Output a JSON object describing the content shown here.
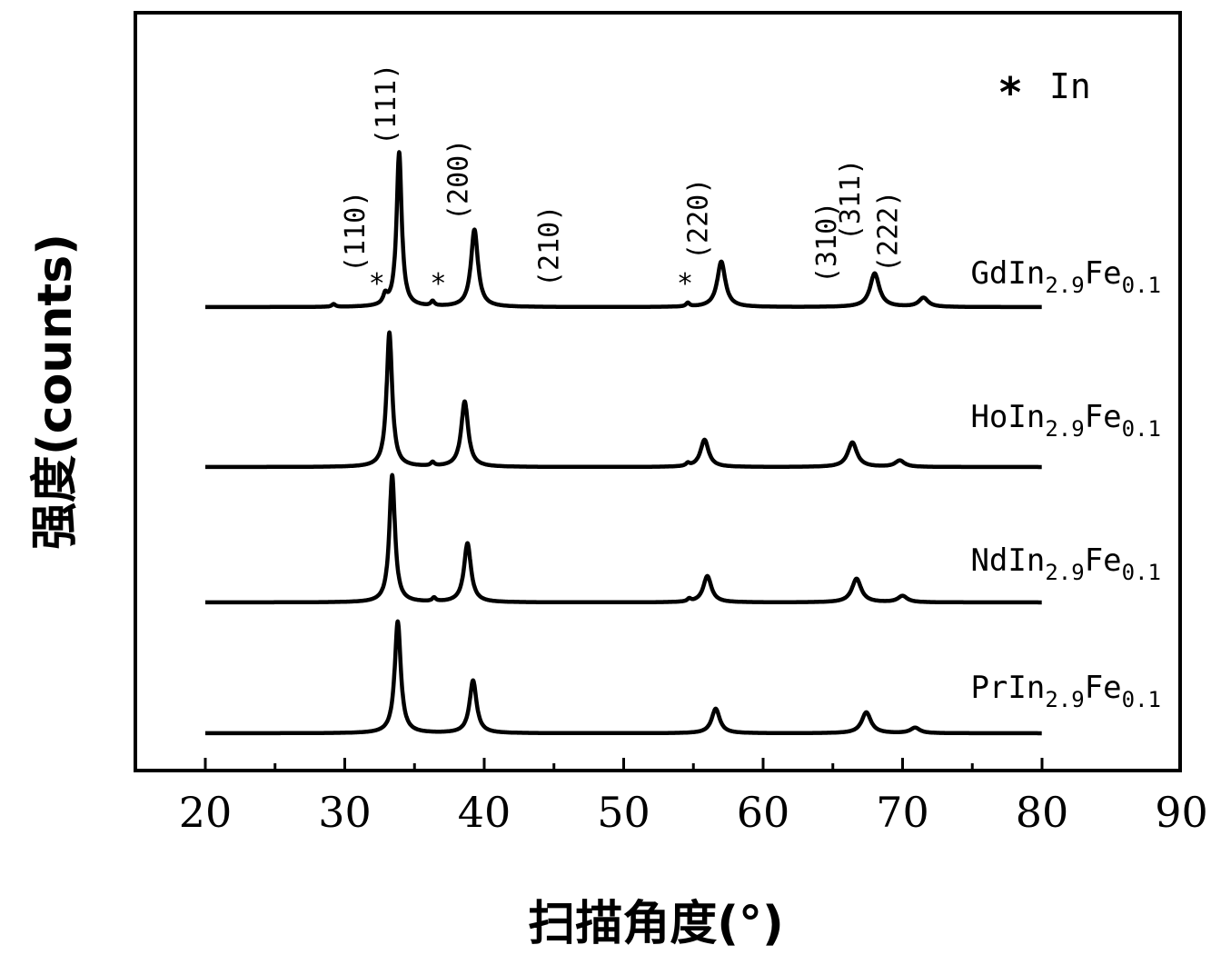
{
  "chart_data": {
    "type": "line",
    "title": "",
    "xlabel": "扫描角度(°)",
    "ylabel": "强度(counts)",
    "xlim": [
      15,
      90
    ],
    "xticks": [
      20,
      30,
      40,
      50,
      60,
      70,
      80,
      90
    ],
    "yticks_shown": false,
    "grid": false,
    "legend": {
      "placement": "top-right",
      "symbol": "*",
      "text": "In"
    },
    "data_x_range": [
      20,
      80
    ],
    "series": [
      {
        "name": "GdIn2.9Fe0.1",
        "label_main": "GdIn",
        "label_sub1": "2.9",
        "label_mid": "Fe",
        "label_sub2": "0.1",
        "baseline": 0,
        "peaks": [
          {
            "x": 29.2,
            "height": 3,
            "width": 0.15
          },
          {
            "x": 32.9,
            "height": 10,
            "width": 0.18
          },
          {
            "x": 33.9,
            "height": 170,
            "width": 0.22
          },
          {
            "x": 36.3,
            "height": 5,
            "width": 0.15
          },
          {
            "x": 39.3,
            "height": 85,
            "width": 0.3
          },
          {
            "x": 54.6,
            "height": 4,
            "width": 0.15
          },
          {
            "x": 57.0,
            "height": 50,
            "width": 0.35
          },
          {
            "x": 68.0,
            "height": 37,
            "width": 0.4
          },
          {
            "x": 71.5,
            "height": 10,
            "width": 0.4
          }
        ]
      },
      {
        "name": "HoIn2.9Fe0.1",
        "label_main": "HoIn",
        "label_sub1": "2.9",
        "label_mid": "Fe",
        "label_sub2": "0.1",
        "baseline": 0,
        "peaks": [
          {
            "x": 33.2,
            "height": 148,
            "width": 0.24
          },
          {
            "x": 36.3,
            "height": 4,
            "width": 0.15
          },
          {
            "x": 38.6,
            "height": 72,
            "width": 0.3
          },
          {
            "x": 54.6,
            "height": 3,
            "width": 0.15
          },
          {
            "x": 55.8,
            "height": 30,
            "width": 0.35
          },
          {
            "x": 66.4,
            "height": 27,
            "width": 0.4
          },
          {
            "x": 69.8,
            "height": 7,
            "width": 0.4
          }
        ]
      },
      {
        "name": "NdIn2.9Fe0.1",
        "label_main": "NdIn",
        "label_sub1": "2.9",
        "label_mid": "Fe",
        "label_sub2": "0.1",
        "baseline": 0,
        "peaks": [
          {
            "x": 33.4,
            "height": 140,
            "width": 0.24
          },
          {
            "x": 36.4,
            "height": 4,
            "width": 0.15
          },
          {
            "x": 38.8,
            "height": 65,
            "width": 0.3
          },
          {
            "x": 54.7,
            "height": 3,
            "width": 0.15
          },
          {
            "x": 56.0,
            "height": 29,
            "width": 0.35
          },
          {
            "x": 66.7,
            "height": 26,
            "width": 0.4
          },
          {
            "x": 70.0,
            "height": 7,
            "width": 0.4
          }
        ]
      },
      {
        "name": "PrIn2.9Fe0.1",
        "label_main": "PrIn",
        "label_sub1": "2.9",
        "label_mid": "Fe",
        "label_sub2": "0.1",
        "baseline": 0,
        "peaks": [
          {
            "x": 33.8,
            "height": 123,
            "width": 0.26
          },
          {
            "x": 39.2,
            "height": 58,
            "width": 0.3
          },
          {
            "x": 56.6,
            "height": 27,
            "width": 0.35
          },
          {
            "x": 67.4,
            "height": 23,
            "width": 0.4
          },
          {
            "x": 70.9,
            "height": 6,
            "width": 0.4
          }
        ]
      }
    ],
    "annotations_hkl": [
      {
        "text": "(110)",
        "x": 31.4
      },
      {
        "text": "(111)",
        "x": 33.6
      },
      {
        "text": "(200)",
        "x": 38.8
      },
      {
        "text": "(210)",
        "x": 45.3
      },
      {
        "text": "(220)",
        "x": 56.0
      },
      {
        "text": "(310)",
        "x": 65.2
      },
      {
        "text": "(311)",
        "x": 66.9
      },
      {
        "text": "(222)",
        "x": 69.6
      }
    ],
    "annotations_star": [
      {
        "text": "*",
        "x": 32.3
      },
      {
        "text": "*",
        "x": 36.7
      },
      {
        "text": "*",
        "x": 54.4
      }
    ]
  }
}
